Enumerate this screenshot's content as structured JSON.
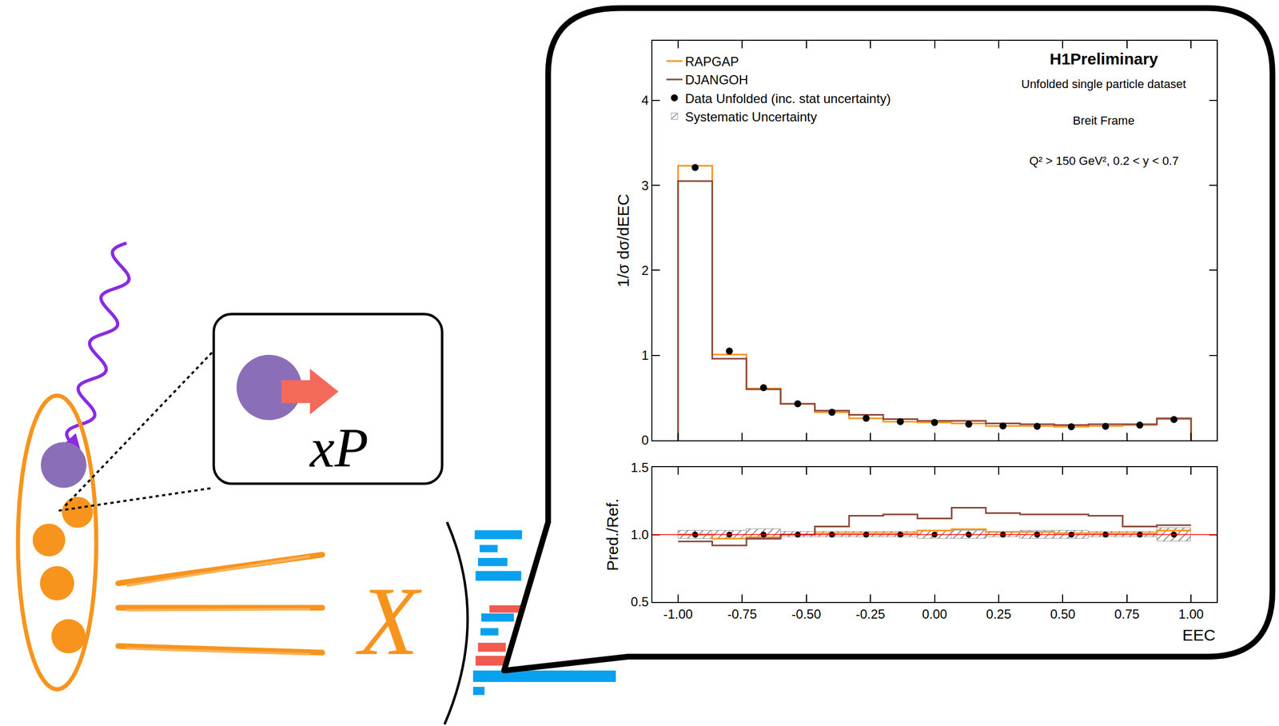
{
  "chart_data": {
    "type": "histogram",
    "title": "H1Preliminary",
    "annotations": [
      "Unfolded single particle dataset",
      "Breit Frame",
      "Q² > 150 GeV², 0.2 < y < 0.7"
    ],
    "x_label": "EEC",
    "y_label": "1/σ dσ/dEEC",
    "bins": [
      -1.0,
      -0.8667,
      -0.7333,
      -0.6,
      -0.4667,
      -0.3333,
      -0.2,
      -0.0667,
      0.0667,
      0.2,
      0.3333,
      0.4667,
      0.6,
      0.7333,
      0.8667,
      1.0
    ],
    "series": [
      {
        "name": "RAPGAP",
        "type": "step",
        "color": "#f7941d",
        "values": [
          3.23,
          1.01,
          0.61,
          0.43,
          0.33,
          0.26,
          0.22,
          0.21,
          0.2,
          0.17,
          0.17,
          0.16,
          0.17,
          0.18,
          0.25
        ]
      },
      {
        "name": "DJANGOH",
        "type": "step",
        "color": "#8b4a3c",
        "values": [
          3.05,
          0.96,
          0.6,
          0.43,
          0.35,
          0.3,
          0.25,
          0.23,
          0.23,
          0.2,
          0.19,
          0.18,
          0.19,
          0.19,
          0.26
        ]
      },
      {
        "name": "Data Unfolded (inc. stat uncertainty)",
        "type": "scatter",
        "marker": "circle",
        "color": "#000000",
        "values": [
          3.21,
          1.05,
          0.62,
          0.43,
          0.33,
          0.26,
          0.22,
          0.21,
          0.19,
          0.17,
          0.165,
          0.16,
          0.165,
          0.18,
          0.245
        ]
      }
    ],
    "xlim": [
      -1.1,
      1.1
    ],
    "xticks": [
      {
        "value": -1,
        "label": "-1.00"
      },
      {
        "value": -0.75,
        "label": "-0.75"
      },
      {
        "value": -0.5,
        "label": "-0.50"
      },
      {
        "value": -0.25,
        "label": "-0.25"
      },
      {
        "value": 0,
        "label": "0.00"
      },
      {
        "value": 0.25,
        "label": "0.25"
      },
      {
        "value": 0.5,
        "label": "0.50"
      },
      {
        "value": 0.75,
        "label": "0.75"
      },
      {
        "value": 1,
        "label": "1.00"
      }
    ],
    "ylim": [
      0,
      4.7
    ],
    "yticks": [
      0,
      1,
      2,
      3,
      4
    ],
    "legend": "top-left",
    "ratio_panel": {
      "y_label": "Pred./Ref.",
      "ylim": [
        0.5,
        1.5
      ],
      "yticks": [
        {
          "value": 0.5,
          "label": "0.5"
        },
        {
          "value": 1,
          "label": "1.0"
        },
        {
          "value": 1.5,
          "label": "1.5"
        }
      ],
      "reference_line": 1,
      "reference_color": "#ff0000",
      "systematic_uncertainty": {
        "name": "Systematic Uncertainty",
        "color": "#9a9a9a",
        "values": [
          0.03,
          0.03,
          0.04,
          0.02,
          0.02,
          0.02,
          0.02,
          0.03,
          0.03,
          0.02,
          0.03,
          0.03,
          0.02,
          0.02,
          0.05
        ]
      },
      "series": [
        {
          "name": "RAPGAP",
          "values": [
            1.0,
            0.97,
            0.98,
            1.0,
            1.01,
            1.01,
            1.01,
            1.03,
            1.04,
            1.02,
            1.02,
            1.01,
            1.01,
            1.01,
            1.03
          ]
        },
        {
          "name": "DJANGOH",
          "values": [
            0.95,
            0.92,
            0.97,
            1.0,
            1.06,
            1.14,
            1.15,
            1.12,
            1.2,
            1.16,
            1.15,
            1.15,
            1.14,
            1.06,
            1.07
          ]
        },
        {
          "name": "Data Unfolded (inc. stat uncertainty)",
          "values": [
            1,
            1,
            1,
            1,
            1,
            1,
            1,
            1,
            1,
            1,
            1,
            1,
            1,
            1,
            1
          ]
        }
      ]
    }
  },
  "diagram": {
    "box_label": "xP",
    "final_state_label": "X"
  }
}
